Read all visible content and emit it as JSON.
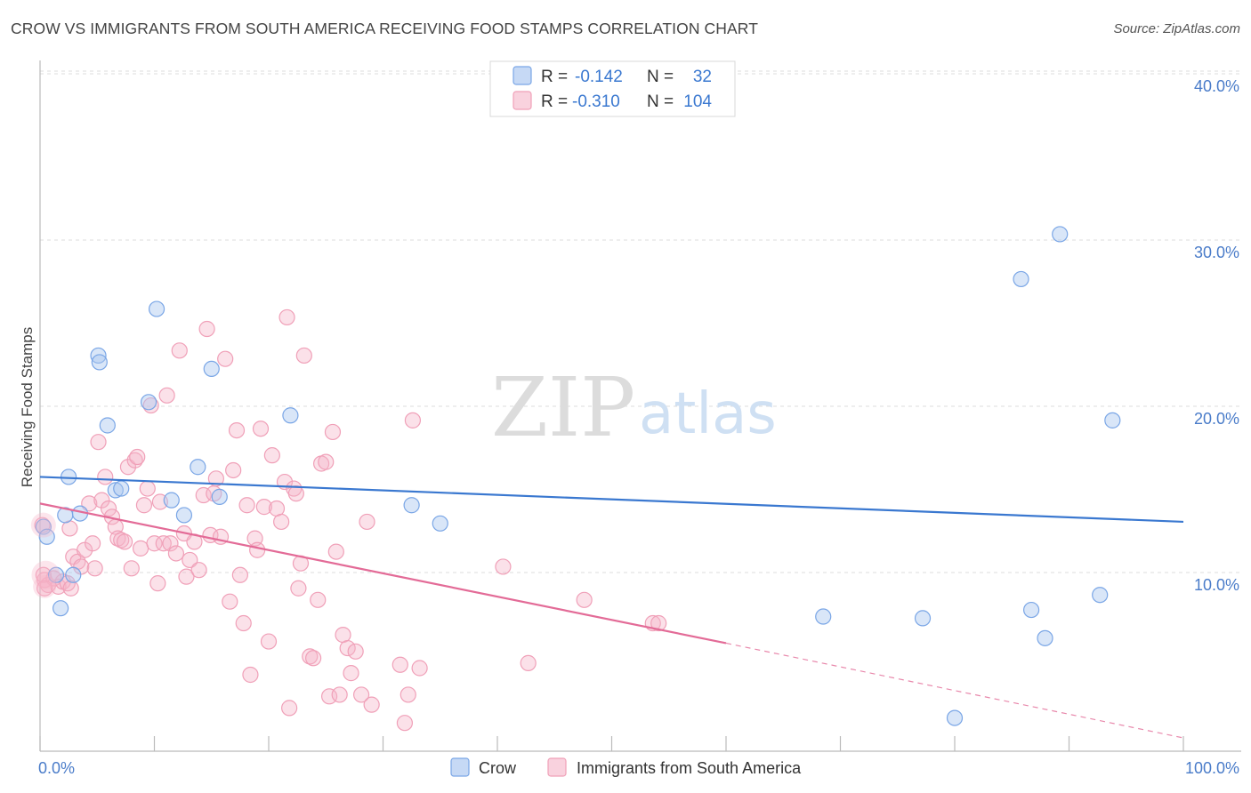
{
  "header": {
    "title": "CROW VS IMMIGRANTS FROM SOUTH AMERICA RECEIVING FOOD STAMPS CORRELATION CHART",
    "source": "Source: ZipAtlas.com"
  },
  "watermark": {
    "zip": "ZIP",
    "atlas": "atlas"
  },
  "stats": [
    {
      "r_label": "R =",
      "r_value": "-0.142",
      "n_label": "N =",
      "n_value": "32",
      "color": "#7aa6e6"
    },
    {
      "r_label": "R =",
      "r_value": "-0.310",
      "n_label": "N =",
      "n_value": "104",
      "color": "#f0a0b8"
    }
  ],
  "legend": [
    {
      "label": "Crow",
      "color": "#7aa6e6"
    },
    {
      "label": "Immigrants from South America",
      "color": "#f0a0b8"
    }
  ],
  "chart_data": {
    "type": "scatter",
    "title": "CROW VS IMMIGRANTS FROM SOUTH AMERICA RECEIVING FOOD STAMPS CORRELATION CHART",
    "xlabel": "",
    "ylabel": "Receiving Food Stamps",
    "xlim": [
      0,
      100
    ],
    "ylim": [
      0,
      40
    ],
    "x_tick_labels": [
      "0.0%",
      "100.0%"
    ],
    "y_ticks": [
      10,
      20,
      30,
      40
    ],
    "y_tick_labels": [
      "10.0%",
      "20.0%",
      "30.0%",
      "40.0%"
    ],
    "grid": true,
    "legend_position": "bottom",
    "colors": {
      "crow": "#3a78d0",
      "immigrants": "#e36b97"
    },
    "series": [
      {
        "name": "Crow",
        "color": "#7aa6e6",
        "trend": {
          "x1": 0,
          "y1": 16.5,
          "x2": 100,
          "y2": 13.8
        },
        "points": [
          [
            0.3,
            13.5
          ],
          [
            0.6,
            12.9
          ],
          [
            1.4,
            10.6
          ],
          [
            1.8,
            8.6
          ],
          [
            2.2,
            14.2
          ],
          [
            2.5,
            16.5
          ],
          [
            2.9,
            10.6
          ],
          [
            3.5,
            14.3
          ],
          [
            5.1,
            23.8
          ],
          [
            5.2,
            23.4
          ],
          [
            5.9,
            19.6
          ],
          [
            6.6,
            15.7
          ],
          [
            7.1,
            15.8
          ],
          [
            9.5,
            21.0
          ],
          [
            10.2,
            26.6
          ],
          [
            11.5,
            15.1
          ],
          [
            12.6,
            14.2
          ],
          [
            13.8,
            17.1
          ],
          [
            15.0,
            23.0
          ],
          [
            15.7,
            15.3
          ],
          [
            21.9,
            20.2
          ],
          [
            32.5,
            14.8
          ],
          [
            35.0,
            13.7
          ],
          [
            68.5,
            8.1
          ],
          [
            77.2,
            8.0
          ],
          [
            80.0,
            2.0
          ],
          [
            85.8,
            28.4
          ],
          [
            86.7,
            8.5
          ],
          [
            87.9,
            6.8
          ],
          [
            89.2,
            31.1
          ],
          [
            92.7,
            9.4
          ],
          [
            93.8,
            19.9
          ]
        ]
      },
      {
        "name": "Immigrants from South America",
        "color": "#f0a0b8",
        "trend": {
          "x1": 0,
          "y1": 14.9,
          "x2": 60.0,
          "y2": 6.5,
          "dash_to_x": 100,
          "dash_to_y": 0.8
        },
        "points": [
          [
            0.4,
            10.3
          ],
          [
            0.7,
            10.0
          ],
          [
            1.2,
            10.4
          ],
          [
            1.6,
            9.9
          ],
          [
            2.0,
            10.2
          ],
          [
            2.4,
            10.1
          ],
          [
            2.7,
            9.8
          ],
          [
            2.6,
            13.4
          ],
          [
            2.9,
            11.7
          ],
          [
            3.3,
            11.4
          ],
          [
            3.6,
            11.1
          ],
          [
            3.9,
            12.1
          ],
          [
            4.3,
            14.9
          ],
          [
            4.6,
            12.5
          ],
          [
            4.8,
            11.0
          ],
          [
            5.1,
            18.6
          ],
          [
            5.4,
            15.1
          ],
          [
            5.7,
            16.5
          ],
          [
            6.0,
            14.6
          ],
          [
            6.3,
            14.1
          ],
          [
            6.6,
            13.5
          ],
          [
            6.8,
            12.8
          ],
          [
            7.1,
            12.7
          ],
          [
            7.4,
            12.6
          ],
          [
            7.7,
            17.1
          ],
          [
            8.0,
            11.0
          ],
          [
            8.3,
            17.5
          ],
          [
            8.5,
            17.7
          ],
          [
            8.8,
            12.2
          ],
          [
            9.1,
            14.8
          ],
          [
            9.4,
            15.8
          ],
          [
            9.7,
            20.8
          ],
          [
            10.0,
            12.5
          ],
          [
            10.3,
            10.1
          ],
          [
            10.5,
            15.0
          ],
          [
            10.8,
            12.5
          ],
          [
            11.1,
            21.4
          ],
          [
            11.4,
            12.5
          ],
          [
            11.9,
            11.9
          ],
          [
            12.2,
            24.1
          ],
          [
            12.6,
            13.1
          ],
          [
            12.8,
            10.5
          ],
          [
            13.1,
            11.5
          ],
          [
            13.5,
            12.6
          ],
          [
            13.9,
            10.9
          ],
          [
            14.3,
            15.4
          ],
          [
            14.6,
            25.4
          ],
          [
            14.9,
            13.0
          ],
          [
            15.2,
            15.5
          ],
          [
            15.4,
            16.4
          ],
          [
            15.8,
            12.9
          ],
          [
            16.2,
            23.6
          ],
          [
            16.6,
            9.0
          ],
          [
            16.9,
            16.9
          ],
          [
            17.2,
            19.3
          ],
          [
            17.5,
            10.6
          ],
          [
            17.8,
            7.7
          ],
          [
            18.1,
            14.8
          ],
          [
            18.4,
            4.6
          ],
          [
            18.8,
            12.8
          ],
          [
            19.0,
            12.1
          ],
          [
            19.3,
            19.4
          ],
          [
            19.6,
            14.7
          ],
          [
            20.0,
            6.6
          ],
          [
            20.3,
            17.8
          ],
          [
            20.7,
            14.6
          ],
          [
            21.1,
            13.8
          ],
          [
            21.4,
            16.2
          ],
          [
            21.8,
            2.6
          ],
          [
            21.6,
            26.1
          ],
          [
            22.2,
            15.8
          ],
          [
            22.4,
            15.5
          ],
          [
            22.8,
            11.3
          ],
          [
            22.6,
            9.8
          ],
          [
            23.1,
            23.8
          ],
          [
            23.6,
            5.7
          ],
          [
            23.9,
            5.6
          ],
          [
            24.3,
            9.1
          ],
          [
            24.6,
            17.3
          ],
          [
            25.0,
            17.4
          ],
          [
            25.3,
            3.3
          ],
          [
            25.6,
            19.2
          ],
          [
            25.9,
            12.0
          ],
          [
            26.2,
            3.4
          ],
          [
            26.5,
            7.0
          ],
          [
            26.9,
            6.2
          ],
          [
            27.2,
            4.7
          ],
          [
            27.6,
            6.0
          ],
          [
            28.1,
            3.4
          ],
          [
            28.6,
            13.8
          ],
          [
            29.0,
            2.8
          ],
          [
            31.5,
            5.2
          ],
          [
            31.9,
            1.7
          ],
          [
            32.2,
            3.4
          ],
          [
            32.6,
            19.9
          ],
          [
            33.2,
            5.0
          ],
          [
            40.5,
            11.1
          ],
          [
            42.7,
            5.3
          ],
          [
            47.6,
            9.1
          ],
          [
            53.6,
            7.7
          ],
          [
            54.1,
            7.7
          ],
          [
            0.2,
            13.6
          ],
          [
            0.3,
            10.6
          ],
          [
            0.4,
            9.8
          ]
        ]
      }
    ]
  }
}
